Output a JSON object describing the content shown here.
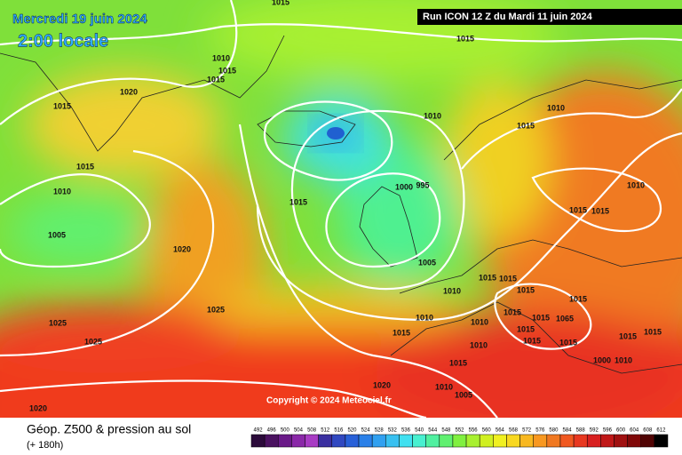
{
  "header": {
    "date": "Mercredi 19 juin 2024",
    "time": "2:00 locale",
    "run": "Run ICON 12 Z du Mardi 11 juin 2024",
    "copyright": "Copyright © 2024 Meteociel.fr"
  },
  "isobar_labels": [
    "1015",
    "1015",
    "1010",
    "1015",
    "1015",
    "1020",
    "1015",
    "1010",
    "1015",
    "1010",
    "1015",
    "1010",
    "1000",
    "995",
    "1015",
    "1010",
    "1015",
    "1015",
    "1005",
    "1020",
    "1005",
    "1010",
    "1015",
    "1015",
    "1015",
    "1015",
    "1025",
    "1015",
    "1015",
    "1065",
    "1025",
    "1010",
    "1010",
    "1015",
    "1015",
    "1015",
    "1015",
    "1025",
    "1015",
    "1010",
    "1015",
    "1015",
    "1000",
    "1010",
    "1020",
    "1010",
    "1005",
    "1020"
  ],
  "legend": {
    "title": "Géop. Z500 & pression au sol",
    "subtitle": "(+ 180h)",
    "levels": [
      {
        "value": 492,
        "color": "#2b0a3a"
      },
      {
        "value": 496,
        "color": "#4a1260"
      },
      {
        "value": 500,
        "color": "#6a1a88"
      },
      {
        "value": 504,
        "color": "#8a28a8"
      },
      {
        "value": 508,
        "color": "#a83cc4"
      },
      {
        "value": 512,
        "color": "#3a2fa0"
      },
      {
        "value": 516,
        "color": "#3048c0"
      },
      {
        "value": 520,
        "color": "#2860d8"
      },
      {
        "value": 524,
        "color": "#2a80e8"
      },
      {
        "value": 528,
        "color": "#30a0f0"
      },
      {
        "value": 532,
        "color": "#38c0f0"
      },
      {
        "value": 536,
        "color": "#40e0f0"
      },
      {
        "value": 540,
        "color": "#48f0d0"
      },
      {
        "value": 544,
        "color": "#50f0a0"
      },
      {
        "value": 548,
        "color": "#60f070"
      },
      {
        "value": 552,
        "color": "#80f040"
      },
      {
        "value": 556,
        "color": "#a8f030"
      },
      {
        "value": 560,
        "color": "#d0f020"
      },
      {
        "value": 564,
        "color": "#f0f020"
      },
      {
        "value": 568,
        "color": "#f8d820"
      },
      {
        "value": 572,
        "color": "#f8b820"
      },
      {
        "value": 576,
        "color": "#f89820"
      },
      {
        "value": 580,
        "color": "#f07820"
      },
      {
        "value": 584,
        "color": "#f05820"
      },
      {
        "value": 588,
        "color": "#e83820"
      },
      {
        "value": 592,
        "color": "#d82020"
      },
      {
        "value": 596,
        "color": "#c01818"
      },
      {
        "value": 600,
        "color": "#a01010"
      },
      {
        "value": 604,
        "color": "#800808"
      },
      {
        "value": 608,
        "color": "#500404"
      },
      {
        "value": 612,
        "color": "#000000"
      }
    ]
  }
}
